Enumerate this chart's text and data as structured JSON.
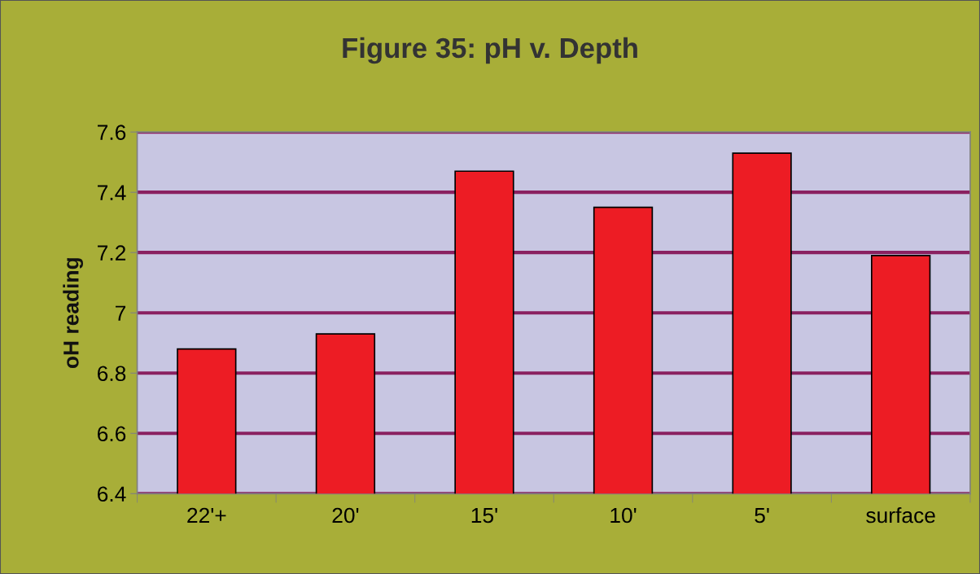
{
  "chart_data": {
    "type": "bar",
    "title": "Figure 35: pH v. Depth",
    "ylabel": "oH reading",
    "categories": [
      "22'+",
      "20'",
      "15'",
      "10'",
      "5'",
      "surface"
    ],
    "values": [
      6.88,
      6.93,
      7.47,
      7.35,
      7.53,
      7.19
    ],
    "color": "#ed1c24",
    "ylim": [
      6.4,
      7.6
    ],
    "yticks": [
      6.4,
      6.6,
      6.8,
      7,
      7.2,
      7.4,
      7.6
    ],
    "grid": "y"
  }
}
